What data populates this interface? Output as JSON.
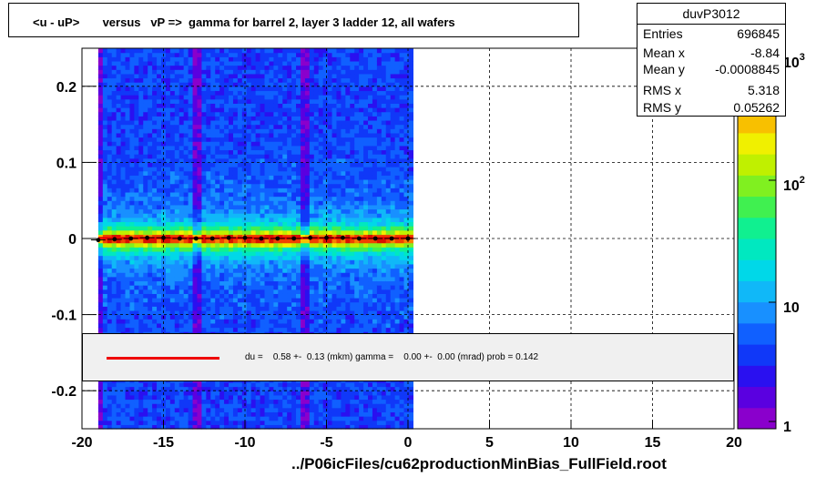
{
  "chart_data": {
    "type": "heatmap",
    "title": "<u - uP>       versus   vP =>  gamma for barrel 2, layer 3 ladder 12, all wafers",
    "xlim": [
      -20,
      20
    ],
    "ylim": [
      -0.25,
      0.25
    ],
    "x_ticks": [
      -20,
      -15,
      -10,
      -5,
      0,
      5,
      10,
      15,
      20
    ],
    "x_tick_labels": [
      "-20",
      "-15",
      "-10",
      "-5",
      "0",
      "5",
      "10",
      "15",
      "20"
    ],
    "y_ticks": [
      -0.2,
      -0.1,
      0,
      0.1,
      0.2
    ],
    "y_tick_labels": [
      "-0.2",
      "-0.1",
      "0",
      "0.1",
      "0.2"
    ],
    "grid": true,
    "data_x_range": [
      -19,
      0.3
    ],
    "gap_columns_x": [
      -19.0,
      -12.9,
      -6.2
    ],
    "color_scale": "log",
    "color_scale_labels": [
      "1",
      "10",
      "10^2",
      "10^3"
    ],
    "profile_points": {
      "x": [
        -19.0,
        -18.0,
        -17.0,
        -16.0,
        -15.0,
        -14.0,
        -13.0,
        -12.0,
        -11.0,
        -10.0,
        -9.0,
        -8.0,
        -7.0,
        -6.0,
        -5.0,
        -4.0,
        -3.0,
        -2.0,
        -1.0,
        0.0
      ],
      "y": [
        -0.002,
        -0.001,
        0.0,
        0.001,
        0.001,
        0.0,
        0.0,
        0.0,
        0.001,
        0.001,
        0.0,
        0.0,
        0.0,
        0.001,
        0.001,
        0.001,
        0.0,
        0.0,
        0.0,
        0.0
      ]
    },
    "fit_line": {
      "slope": 0,
      "intercept": 0.0006
    }
  },
  "stats": {
    "name": "duvP3012",
    "rows": [
      {
        "key": "Entries",
        "value": "696845"
      },
      {
        "key": "Mean x",
        "value": "-8.84"
      },
      {
        "key": "Mean y",
        "value": "-0.0008845"
      },
      {
        "key": "RMS x",
        "value": "5.318"
      },
      {
        "key": "RMS y",
        "value": "0.05262"
      }
    ]
  },
  "fit": {
    "text": "du =    0.58 +-  0.13 (mkm) gamma =    0.00 +-  0.00 (mrad) prob = 0.142"
  },
  "footer": "../P06icFiles/cu62productionMinBias_FullField.root",
  "colors": {
    "fit_line": "#ee0000",
    "palette": [
      "#8a00cc",
      "#5a00e0",
      "#2a10f0",
      "#1038f8",
      "#1060ff",
      "#1890ff",
      "#10b8f8",
      "#00d8e8",
      "#00e8c0",
      "#10f090",
      "#40f050",
      "#80f020",
      "#c0f000",
      "#f0f000",
      "#f8c000",
      "#f88000",
      "#f04000",
      "#d81000"
    ]
  }
}
